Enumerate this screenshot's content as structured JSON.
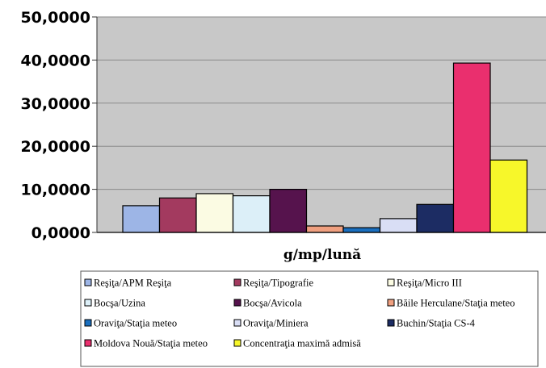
{
  "chart_data": {
    "type": "bar",
    "title": "",
    "xlabel": "g/mp/lună",
    "ylabel": "",
    "ylim": [
      0,
      50
    ],
    "yticks": [
      "0,0000",
      "10,0000",
      "20,0000",
      "30,0000",
      "40,0000",
      "50,0000"
    ],
    "grid": true,
    "legend_position": "bottom",
    "series": [
      {
        "name": "Reşiţa/APM Reşiţa",
        "value": 6.2,
        "color": "#9db5e6"
      },
      {
        "name": "Reşiţa/Tipografie",
        "value": 8.0,
        "color": "#a33a5f"
      },
      {
        "name": "Reşiţa/Micro III",
        "value": 9.0,
        "color": "#fbfbe3"
      },
      {
        "name": "Bocşa/Uzina",
        "value": 8.5,
        "color": "#dceff8"
      },
      {
        "name": "Bocşa/Avicola",
        "value": 10.0,
        "color": "#56134d"
      },
      {
        "name": "Băile Herculane/Staţia meteo",
        "value": 1.5,
        "color": "#f0a080"
      },
      {
        "name": "Oraviţa/Staţia meteo",
        "value": 1.1,
        "color": "#1a6fbf"
      },
      {
        "name": "Oraviţa/Miniera",
        "value": 3.2,
        "color": "#d9def5"
      },
      {
        "name": "Buchin/Staţia CS-4",
        "value": 6.5,
        "color": "#1c2c63"
      },
      {
        "name": "Moldova Nouă/Staţia meteo",
        "value": 39.3,
        "color": "#ea2f6e"
      },
      {
        "name": "Concentraţia maximă admisă",
        "value": 16.8,
        "color": "#f7f72a"
      }
    ]
  }
}
